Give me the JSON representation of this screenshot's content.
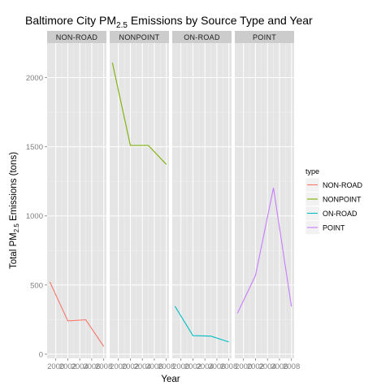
{
  "chart_data": {
    "type": "line",
    "title": {
      "main": "Baltimore City PM",
      "sub": "2.5",
      "rest": " Emissions by Source Type and Year"
    },
    "xlabel": "Year",
    "ylabel": {
      "pre": "Total PM",
      "sub": "2.5",
      "post": " Emissions (tons)"
    },
    "x": [
      1999,
      2002,
      2005,
      2008
    ],
    "x_tick_labels": [
      "2000",
      "2002",
      "2004",
      "2006",
      "2008"
    ],
    "x_ticks": [
      2000,
      2002,
      2004,
      2006,
      2008
    ],
    "xlim": [
      1998.55,
      2008.45
    ],
    "y_ticks": [
      0,
      500,
      1000,
      1500,
      2000
    ],
    "y_tick_labels": [
      "0",
      "500",
      "1000",
      "1500",
      "2000"
    ],
    "ylim": [
      -30,
      2250
    ],
    "grid": true,
    "legend": {
      "title": "type",
      "position": "right"
    },
    "panels": [
      {
        "name": "NON-ROAD",
        "color": "#F8766D",
        "values": [
          522.94,
          240.85,
          248.93,
          55.82
        ]
      },
      {
        "name": "NONPOINT",
        "color": "#7CAE00",
        "values": [
          2107.63,
          1509.5,
          1509.5,
          1373.21
        ]
      },
      {
        "name": "ON-ROAD",
        "color": "#00BFC4",
        "values": [
          346.82,
          134.31,
          130.43,
          88.28
        ]
      },
      {
        "name": "POINT",
        "color": "#C77CFF",
        "values": [
          296.8,
          569.26,
          1202.49,
          344.98
        ]
      }
    ]
  }
}
